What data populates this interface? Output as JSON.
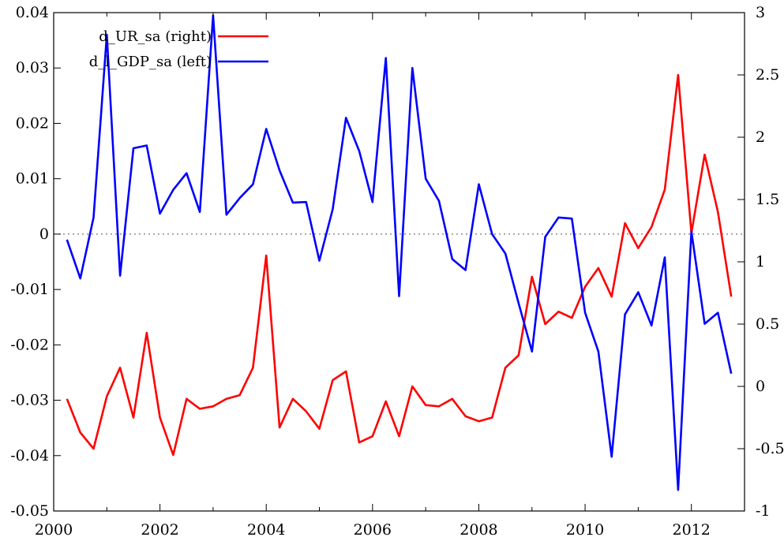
{
  "chart_data": {
    "type": "line",
    "x_ticks": [
      "2000",
      "2002",
      "2004",
      "2006",
      "2008",
      "2010",
      "2012"
    ],
    "y_left_ticks": [
      "0.04",
      "0.03",
      "0.02",
      "0.01",
      "0",
      "-0.01",
      "-0.02",
      "-0.03",
      "-0.04",
      "-0.05"
    ],
    "y_right_ticks": [
      "3",
      "2.5",
      "2",
      "1.5",
      "1",
      "0.5",
      "0",
      "-0.5",
      "-1"
    ],
    "x_range": [
      2000,
      2013
    ],
    "ylim_left": [
      -0.05,
      0.04
    ],
    "ylim_right": [
      -1,
      3
    ],
    "zero_line": "dotted",
    "legend_position": "top-center",
    "series": [
      {
        "name": "d_UR_sa (right)",
        "axis": "right",
        "color": "#ff0000",
        "x": [
          2000.25,
          2000.5,
          2000.75,
          2001.0,
          2001.25,
          2001.5,
          2001.75,
          2002.0,
          2002.25,
          2002.5,
          2002.75,
          2003.0,
          2003.25,
          2003.5,
          2003.75,
          2004.0,
          2004.25,
          2004.5,
          2004.75,
          2005.0,
          2005.25,
          2005.5,
          2005.75,
          2006.0,
          2006.25,
          2006.5,
          2006.75,
          2007.0,
          2007.25,
          2007.5,
          2007.75,
          2008.0,
          2008.25,
          2008.5,
          2008.75,
          2009.0,
          2009.25,
          2009.5,
          2009.75,
          2010.0,
          2010.25,
          2010.5,
          2010.75,
          2011.0,
          2011.25,
          2011.5,
          2011.75,
          2012.0,
          2012.25,
          2012.5,
          2012.75
        ],
        "values": [
          -0.1,
          -0.37,
          -0.5,
          -0.08,
          0.15,
          -0.25,
          0.43,
          -0.25,
          -0.55,
          -0.1,
          -0.18,
          -0.16,
          -0.1,
          -0.07,
          0.15,
          1.05,
          -0.33,
          -0.1,
          -0.2,
          -0.34,
          0.05,
          0.12,
          -0.45,
          -0.4,
          -0.12,
          -0.4,
          0.0,
          -0.15,
          -0.16,
          -0.1,
          -0.24,
          -0.28,
          -0.25,
          0.15,
          0.25,
          0.88,
          0.5,
          0.6,
          0.55,
          0.8,
          0.95,
          0.72,
          1.31,
          1.11,
          1.28,
          1.58,
          2.5,
          1.23,
          1.86,
          1.4,
          0.72
        ]
      },
      {
        "name": "d_l_GDP_sa (left)",
        "axis": "left",
        "color": "#0000ff",
        "x": [
          2000.25,
          2000.5,
          2000.75,
          2001.0,
          2001.25,
          2001.5,
          2001.75,
          2002.0,
          2002.25,
          2002.5,
          2002.75,
          2003.0,
          2003.25,
          2003.5,
          2003.75,
          2004.0,
          2004.25,
          2004.5,
          2004.75,
          2005.0,
          2005.25,
          2005.5,
          2005.75,
          2006.0,
          2006.25,
          2006.5,
          2006.75,
          2007.0,
          2007.25,
          2007.5,
          2007.75,
          2008.0,
          2008.25,
          2008.5,
          2008.75,
          2009.0,
          2009.25,
          2009.5,
          2009.75,
          2010.0,
          2010.25,
          2010.5,
          2010.75,
          2011.0,
          2011.25,
          2011.5,
          2011.75,
          2012.0,
          2012.25,
          2012.5,
          2012.75
        ],
        "values": [
          -0.001,
          -0.008,
          0.003,
          0.036,
          -0.0075,
          0.0155,
          0.016,
          0.0037,
          0.008,
          0.011,
          0.004,
          0.0395,
          0.0035,
          0.0065,
          0.009,
          0.019,
          0.0115,
          0.0057,
          0.0058,
          -0.0048,
          0.0045,
          0.021,
          0.015,
          0.0058,
          0.0318,
          -0.0112,
          0.03,
          0.01,
          0.006,
          -0.0045,
          -0.0065,
          0.009,
          0.0,
          -0.0035,
          -0.0125,
          -0.0212,
          -0.0005,
          0.003,
          0.0028,
          -0.0142,
          -0.0212,
          -0.0402,
          -0.0145,
          -0.0105,
          -0.0165,
          -0.0042,
          -0.0462,
          0.0005,
          -0.0162,
          -0.0142,
          -0.0252
        ]
      }
    ]
  }
}
